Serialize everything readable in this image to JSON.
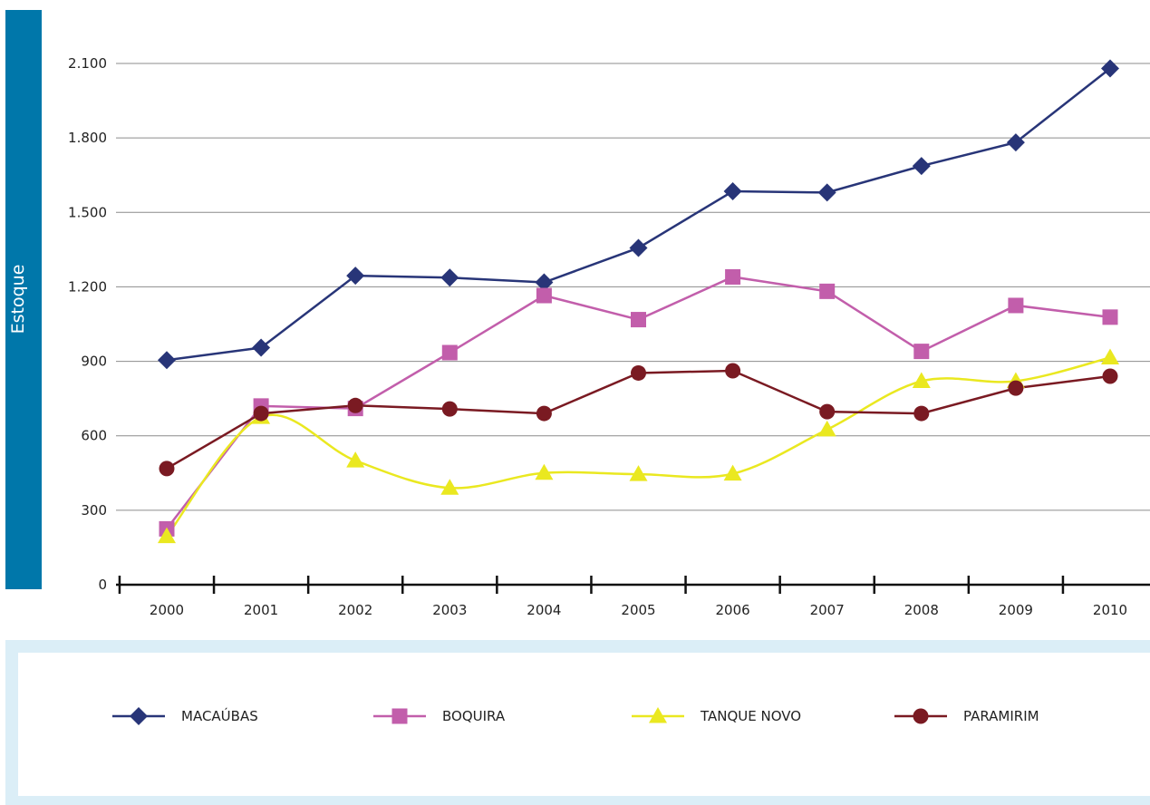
{
  "chart_data": {
    "type": "line",
    "ylabel": "Estoque",
    "xlabel": "",
    "title": "",
    "ylim": [
      0,
      2250
    ],
    "yticks": [
      0,
      300,
      600,
      900,
      1200,
      1500,
      1800,
      2100
    ],
    "ytick_labels": [
      "0",
      "300",
      "600",
      "900",
      "1.200",
      "1.500",
      "1.800",
      "2.100"
    ],
    "categories": [
      "2000",
      "2001",
      "2002",
      "2003",
      "2004",
      "2005",
      "2006",
      "2007",
      "2008",
      "2009",
      "2010"
    ],
    "grid": "horizontal",
    "legend_placement": "bottom",
    "series": [
      {
        "name": "MACAÚBAS",
        "color": "#283578",
        "marker": "diamond",
        "values": [
          905,
          955,
          1245,
          1237,
          1218,
          1357,
          1585,
          1580,
          1687,
          1782,
          2080
        ]
      },
      {
        "name": "BOQUIRA",
        "color": "#c25eab",
        "marker": "square",
        "values": [
          225,
          720,
          710,
          935,
          1165,
          1068,
          1240,
          1182,
          940,
          1125,
          1078
        ]
      },
      {
        "name": "TANQUE NOVO",
        "color": "#eae820",
        "marker": "triangle",
        "values": [
          195,
          675,
          500,
          390,
          450,
          445,
          447,
          625,
          820,
          820,
          915
        ]
      },
      {
        "name": "PARAMIRIM",
        "color": "#7a1a22",
        "marker": "circle",
        "values": [
          468,
          690,
          722,
          708,
          690,
          853,
          862,
          697,
          690,
          792,
          840
        ]
      }
    ]
  }
}
